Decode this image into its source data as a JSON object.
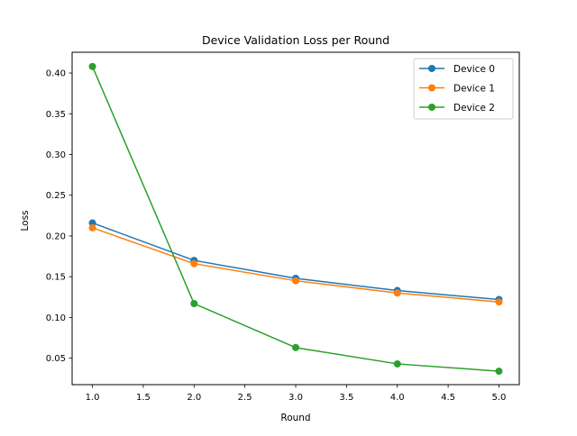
{
  "chart_data": {
    "type": "line",
    "title": "Device Validation Loss per Round",
    "xlabel": "Round",
    "ylabel": "Loss",
    "x": [
      1,
      2,
      3,
      4,
      5
    ],
    "xlim": [
      0.8,
      5.2
    ],
    "ylim": [
      0.0175,
      0.4255
    ],
    "xticks": [
      "1.0",
      "1.5",
      "2.0",
      "2.5",
      "3.0",
      "3.5",
      "4.0",
      "4.5",
      "5.0"
    ],
    "xtick_values": [
      1.0,
      1.5,
      2.0,
      2.5,
      3.0,
      3.5,
      4.0,
      4.5,
      5.0
    ],
    "yticks": [
      "0.05",
      "0.10",
      "0.15",
      "0.20",
      "0.25",
      "0.30",
      "0.35",
      "0.40"
    ],
    "ytick_values": [
      0.05,
      0.1,
      0.15,
      0.2,
      0.25,
      0.3,
      0.35,
      0.4
    ],
    "grid": false,
    "legend_position": "top-right",
    "series": [
      {
        "name": "Device 0",
        "color": "#1f77b4",
        "marker": "circle",
        "values": [
          0.216,
          0.17,
          0.148,
          0.133,
          0.122
        ]
      },
      {
        "name": "Device 1",
        "color": "#ff7f0e",
        "marker": "circle",
        "values": [
          0.21,
          0.166,
          0.145,
          0.13,
          0.119
        ]
      },
      {
        "name": "Device 2",
        "color": "#2ca02c",
        "marker": "circle",
        "values": [
          0.408,
          0.117,
          0.063,
          0.043,
          0.034
        ]
      }
    ]
  }
}
